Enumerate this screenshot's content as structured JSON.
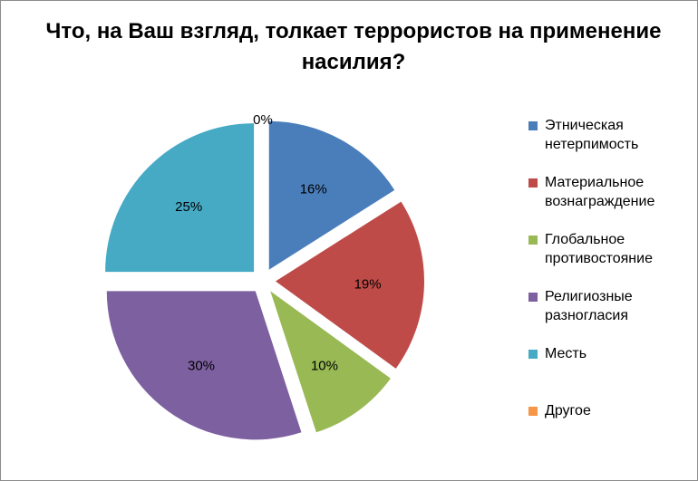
{
  "chart_data": {
    "type": "pie",
    "title": "Что, на Ваш взгляд, толкает террористов на применение насилия?",
    "categories": [
      "Этническая нетерпимость",
      "Материальное вознаграждение",
      "Глобальное противостояние",
      "Религиозные разногласия",
      "Месть",
      "Другое"
    ],
    "values": [
      16,
      19,
      10,
      30,
      25,
      0
    ],
    "data_labels": [
      "16%",
      "19%",
      "10%",
      "30%",
      "25%",
      "0%"
    ],
    "colors": [
      "#4A7EBB",
      "#BE4B48",
      "#98B954",
      "#7D60A0",
      "#46AAC5",
      "#F79646"
    ],
    "legend_position": "right",
    "exploded": true
  }
}
